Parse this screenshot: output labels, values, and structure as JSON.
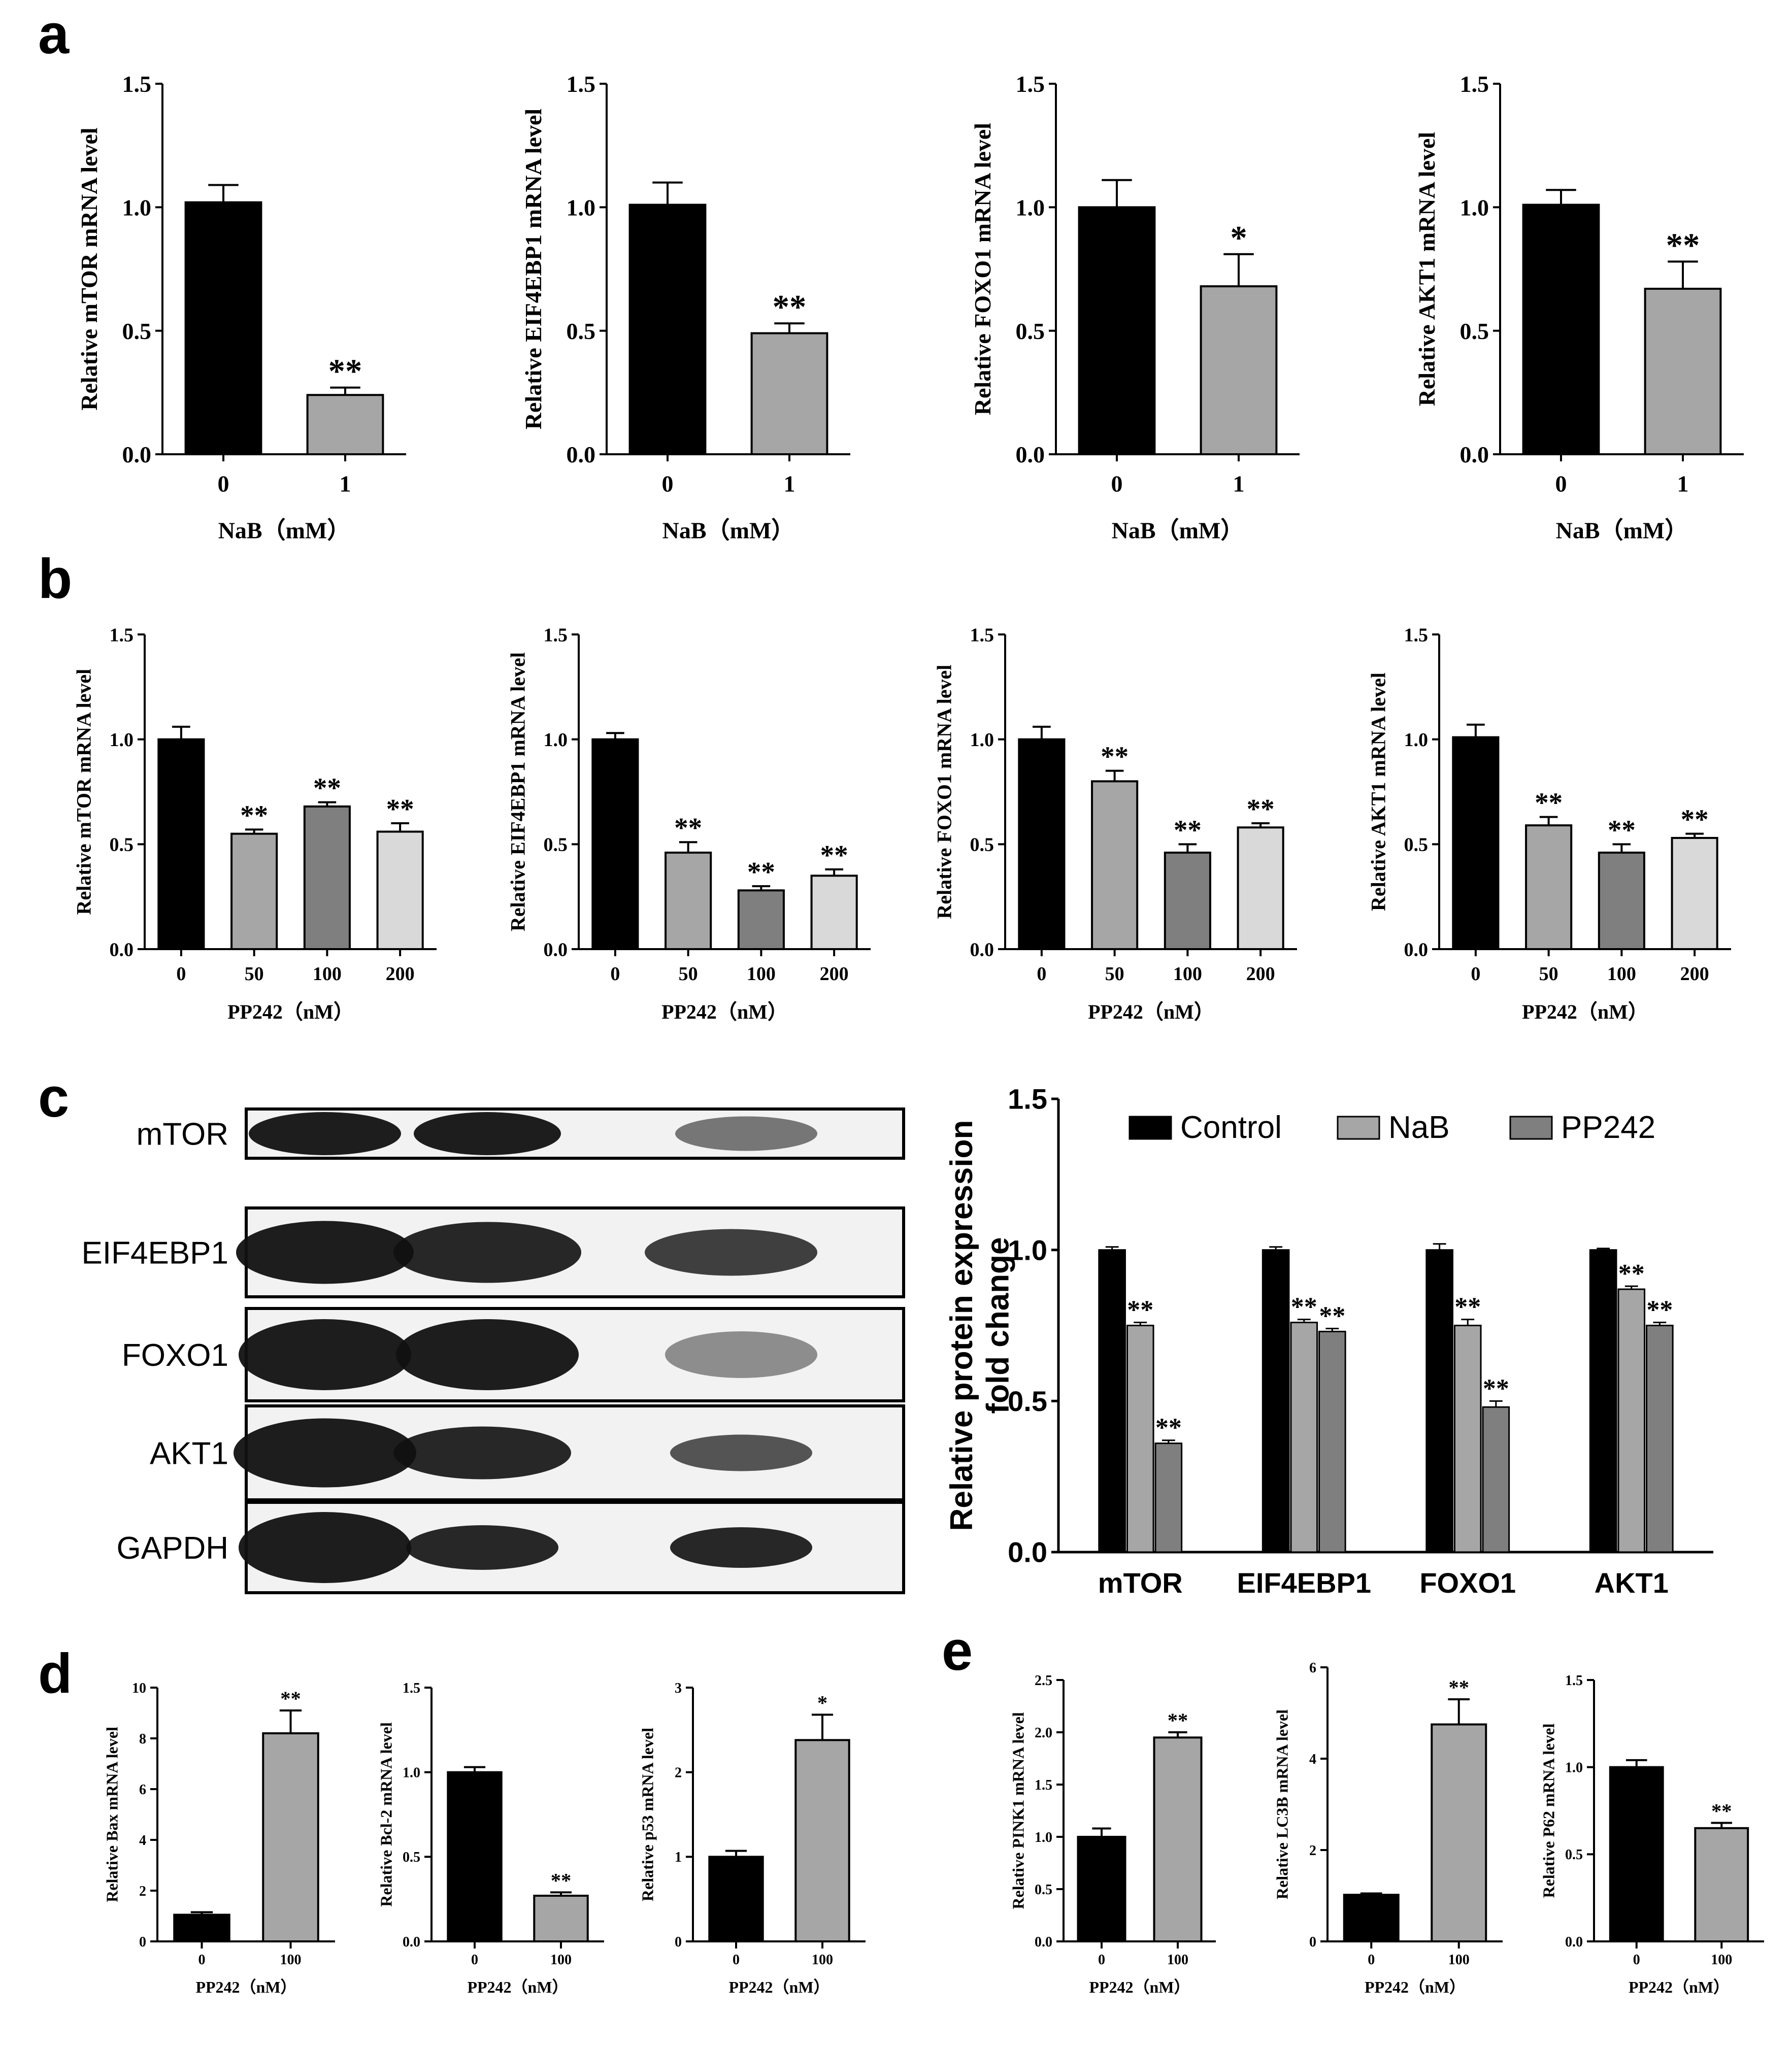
{
  "panels": {
    "a": "a",
    "b": "b",
    "c": "c",
    "d": "d",
    "e": "e"
  },
  "blot": {
    "labels": [
      "mTOR",
      "EIF4EBP1",
      "FOXO1",
      "AKT1",
      "GAPDH"
    ],
    "band_color": "#111111",
    "frame_color": "#000000"
  },
  "colors": {
    "black": "#000000",
    "gray_light": "#a6a6a6",
    "gray_mid": "#7f7f7f",
    "gray_pale": "#d9d9d9"
  },
  "chart_data": [
    {
      "id": "a1",
      "type": "bar",
      "categories": [
        "0",
        "1"
      ],
      "values": [
        1.02,
        0.24
      ],
      "errors": [
        0.07,
        0.03
      ],
      "stars": [
        "",
        "**"
      ],
      "colors": [
        "#000000",
        "#a6a6a6"
      ],
      "ylabel": "Relative mTOR mRNA level",
      "xlabel": "NaB（mM）",
      "ylim": [
        0,
        1.5
      ],
      "yticks": [
        "0.0",
        "0.5",
        "1.0",
        "1.5"
      ]
    },
    {
      "id": "a2",
      "type": "bar",
      "categories": [
        "0",
        "1"
      ],
      "values": [
        1.01,
        0.49
      ],
      "errors": [
        0.09,
        0.04
      ],
      "stars": [
        "",
        "**"
      ],
      "colors": [
        "#000000",
        "#a6a6a6"
      ],
      "ylabel": "Relative EIF4EBP1 mRNA level",
      "xlabel": "NaB（mM）",
      "ylim": [
        0,
        1.5
      ],
      "yticks": [
        "0.0",
        "0.5",
        "1.0",
        "1.5"
      ]
    },
    {
      "id": "a3",
      "type": "bar",
      "categories": [
        "0",
        "1"
      ],
      "values": [
        1.0,
        0.68
      ],
      "errors": [
        0.11,
        0.13
      ],
      "stars": [
        "",
        "*"
      ],
      "colors": [
        "#000000",
        "#a6a6a6"
      ],
      "ylabel": "Relative FOXO1 mRNA level",
      "xlabel": "NaB（mM）",
      "ylim": [
        0,
        1.5
      ],
      "yticks": [
        "0.0",
        "0.5",
        "1.0",
        "1.5"
      ]
    },
    {
      "id": "a4",
      "type": "bar",
      "categories": [
        "0",
        "1"
      ],
      "values": [
        1.01,
        0.67
      ],
      "errors": [
        0.06,
        0.11
      ],
      "stars": [
        "",
        "**"
      ],
      "colors": [
        "#000000",
        "#a6a6a6"
      ],
      "ylabel": "Relative AKT1 mRNA level",
      "xlabel": "NaB（mM）",
      "ylim": [
        0,
        1.5
      ],
      "yticks": [
        "0.0",
        "0.5",
        "1.0",
        "1.5"
      ]
    },
    {
      "id": "b1",
      "type": "bar",
      "categories": [
        "0",
        "50",
        "100",
        "200"
      ],
      "values": [
        1.0,
        0.55,
        0.68,
        0.56
      ],
      "errors": [
        0.06,
        0.02,
        0.02,
        0.04
      ],
      "stars": [
        "",
        "**",
        "**",
        "**"
      ],
      "colors": [
        "#000000",
        "#a6a6a6",
        "#7f7f7f",
        "#d9d9d9"
      ],
      "ylabel": "Relative mTOR mRNA level",
      "xlabel": "PP242（nM）",
      "ylim": [
        0,
        1.5
      ],
      "yticks": [
        "0.0",
        "0.5",
        "1.0",
        "1.5"
      ]
    },
    {
      "id": "b2",
      "type": "bar",
      "categories": [
        "0",
        "50",
        "100",
        "200"
      ],
      "values": [
        1.0,
        0.46,
        0.28,
        0.35
      ],
      "errors": [
        0.03,
        0.05,
        0.02,
        0.03
      ],
      "stars": [
        "",
        "**",
        "**",
        "**"
      ],
      "colors": [
        "#000000",
        "#a6a6a6",
        "#7f7f7f",
        "#d9d9d9"
      ],
      "ylabel": "Relative EIF4EBP1 mRNA level",
      "xlabel": "PP242（nM）",
      "ylim": [
        0,
        1.5
      ],
      "yticks": [
        "0.0",
        "0.5",
        "1.0",
        "1.5"
      ]
    },
    {
      "id": "b3",
      "type": "bar",
      "categories": [
        "0",
        "50",
        "100",
        "200"
      ],
      "values": [
        1.0,
        0.8,
        0.46,
        0.58
      ],
      "errors": [
        0.06,
        0.05,
        0.04,
        0.02
      ],
      "stars": [
        "",
        "**",
        "**",
        "**"
      ],
      "colors": [
        "#000000",
        "#a6a6a6",
        "#7f7f7f",
        "#d9d9d9"
      ],
      "ylabel": "Relative FOXO1 mRNA level",
      "xlabel": "PP242（nM）",
      "ylim": [
        0,
        1.5
      ],
      "yticks": [
        "0.0",
        "0.5",
        "1.0",
        "1.5"
      ]
    },
    {
      "id": "b4",
      "type": "bar",
      "categories": [
        "0",
        "50",
        "100",
        "200"
      ],
      "values": [
        1.01,
        0.59,
        0.46,
        0.53
      ],
      "errors": [
        0.06,
        0.04,
        0.04,
        0.02
      ],
      "stars": [
        "",
        "**",
        "**",
        "**"
      ],
      "colors": [
        "#000000",
        "#a6a6a6",
        "#7f7f7f",
        "#d9d9d9"
      ],
      "ylabel": "Relative AKT1 mRNA level",
      "xlabel": "PP242（nM）",
      "ylim": [
        0,
        1.5
      ],
      "yticks": [
        "0.0",
        "0.5",
        "1.0",
        "1.5"
      ]
    },
    {
      "id": "c",
      "type": "bar",
      "categories": [
        "mTOR",
        "EIF4EBP1",
        "FOXO1",
        "AKT1"
      ],
      "series": [
        {
          "name": "Control",
          "values": [
            1.0,
            1.0,
            1.0,
            1.0
          ],
          "errors": [
            0.01,
            0.01,
            0.02,
            0.005
          ],
          "stars": [
            "",
            "",
            "",
            ""
          ],
          "color": "#000000"
        },
        {
          "name": "NaB",
          "values": [
            0.75,
            0.76,
            0.75,
            0.87
          ],
          "errors": [
            0.01,
            0.01,
            0.02,
            0.01
          ],
          "stars": [
            "**",
            "**",
            "**",
            "**"
          ],
          "color": "#a6a6a6"
        },
        {
          "name": "PP242",
          "values": [
            0.36,
            0.73,
            0.48,
            0.75
          ],
          "errors": [
            0.01,
            0.01,
            0.02,
            0.01
          ],
          "stars": [
            "**",
            "**",
            "**",
            "**"
          ],
          "color": "#7f7f7f"
        }
      ],
      "ylabel": "Relative protein expression fold change",
      "ylim": [
        0,
        1.5
      ],
      "yticks": [
        "0.0",
        "0.5",
        "1.0",
        "1.5"
      ],
      "legend": "top"
    },
    {
      "id": "d1",
      "type": "bar",
      "categories": [
        "0",
        "100"
      ],
      "values": [
        1.05,
        8.2
      ],
      "errors": [
        0.1,
        0.9
      ],
      "stars": [
        "",
        "**"
      ],
      "colors": [
        "#000000",
        "#a6a6a6"
      ],
      "ylabel": "Relative Bax mRNA level",
      "xlabel": "PP242（nM）",
      "ylim": [
        0,
        10
      ],
      "yticks": [
        "0",
        "2",
        "4",
        "6",
        "8",
        "10"
      ]
    },
    {
      "id": "d2",
      "type": "bar",
      "categories": [
        "0",
        "100"
      ],
      "values": [
        1.0,
        0.27
      ],
      "errors": [
        0.03,
        0.02
      ],
      "stars": [
        "",
        "**"
      ],
      "colors": [
        "#000000",
        "#a6a6a6"
      ],
      "ylabel": "Relative Bcl-2 mRNA level",
      "xlabel": "PP242（nM）",
      "ylim": [
        0,
        1.5
      ],
      "yticks": [
        "0.0",
        "0.5",
        "1.0",
        "1.5"
      ]
    },
    {
      "id": "d3",
      "type": "bar",
      "categories": [
        "0",
        "100"
      ],
      "values": [
        1.0,
        2.38
      ],
      "errors": [
        0.07,
        0.3
      ],
      "stars": [
        "",
        "*"
      ],
      "colors": [
        "#000000",
        "#a6a6a6"
      ],
      "ylabel": "Relative p53 mRNA level",
      "xlabel": "PP242（nM）",
      "ylim": [
        0,
        3
      ],
      "yticks": [
        "0",
        "1",
        "2",
        "3"
      ]
    },
    {
      "id": "e1",
      "type": "bar",
      "categories": [
        "0",
        "100"
      ],
      "values": [
        1.0,
        1.95
      ],
      "errors": [
        0.08,
        0.05
      ],
      "stars": [
        "",
        "**"
      ],
      "colors": [
        "#000000",
        "#a6a6a6"
      ],
      "ylabel": "Relative PINK1 mRNA level",
      "xlabel": "PP242（nM）",
      "ylim": [
        0,
        2.5
      ],
      "yticks": [
        "0.0",
        "0.5",
        "1.0",
        "1.5",
        "2.0",
        "2.5"
      ]
    },
    {
      "id": "e2",
      "type": "bar",
      "categories": [
        "0",
        "100"
      ],
      "values": [
        1.02,
        4.75
      ],
      "errors": [
        0.03,
        0.55
      ],
      "stars": [
        "",
        "**"
      ],
      "colors": [
        "#000000",
        "#a6a6a6"
      ],
      "ylabel": "Relative LC3B mRNA level",
      "xlabel": "PP242（nM）",
      "ylim": [
        0,
        6
      ],
      "yticks": [
        "0",
        "2",
        "4",
        "6"
      ]
    },
    {
      "id": "e3",
      "type": "bar",
      "categories": [
        "0",
        "100"
      ],
      "values": [
        1.0,
        0.65
      ],
      "errors": [
        0.04,
        0.03
      ],
      "stars": [
        "",
        "**"
      ],
      "colors": [
        "#000000",
        "#a6a6a6"
      ],
      "ylabel": "Relative P62 mRNA level",
      "xlabel": "PP242（nM）",
      "ylim": [
        0,
        1.5
      ],
      "yticks": [
        "0.0",
        "0.5",
        "1.0",
        "1.5"
      ]
    }
  ]
}
